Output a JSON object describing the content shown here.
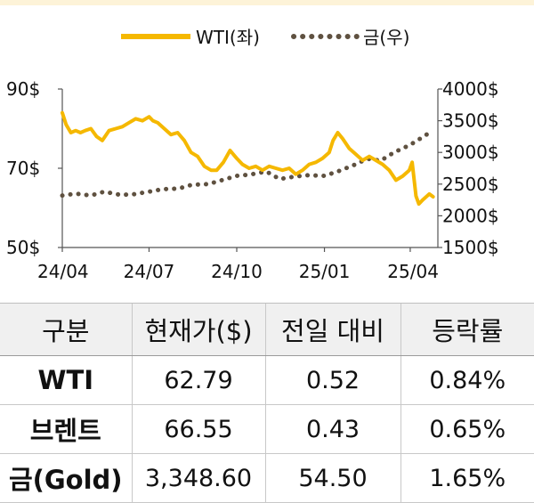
{
  "chart_data": {
    "type": "line",
    "legend_position": "top",
    "series": [
      {
        "name": "WTI(좌)",
        "axis": "left",
        "color": "#f5b800",
        "style": "solid",
        "x": [
          "2024-04-01",
          "2024-04-05",
          "2024-04-10",
          "2024-04-15",
          "2024-04-20",
          "2024-04-25",
          "2024-05-01",
          "2024-05-07",
          "2024-05-13",
          "2024-05-20",
          "2024-05-27",
          "2024-06-03",
          "2024-06-10",
          "2024-06-17",
          "2024-06-24",
          "2024-07-01",
          "2024-07-05",
          "2024-07-10",
          "2024-07-17",
          "2024-07-24",
          "2024-07-31",
          "2024-08-07",
          "2024-08-14",
          "2024-08-21",
          "2024-08-28",
          "2024-09-04",
          "2024-09-10",
          "2024-09-17",
          "2024-09-24",
          "2024-10-01",
          "2024-10-07",
          "2024-10-14",
          "2024-10-21",
          "2024-10-28",
          "2024-11-04",
          "2024-11-11",
          "2024-11-18",
          "2024-11-25",
          "2024-12-02",
          "2024-12-09",
          "2024-12-16",
          "2024-12-23",
          "2024-12-30",
          "2025-01-06",
          "2025-01-10",
          "2025-01-15",
          "2025-01-20",
          "2025-01-27",
          "2025-02-03",
          "2025-02-10",
          "2025-02-17",
          "2025-02-24",
          "2025-03-03",
          "2025-03-10",
          "2025-03-17",
          "2025-03-24",
          "2025-03-31",
          "2025-04-03",
          "2025-04-07",
          "2025-04-10",
          "2025-04-14",
          "2025-04-21",
          "2025-04-25"
        ],
        "values": [
          84,
          81,
          79,
          79.5,
          79,
          79.5,
          80,
          78,
          77,
          79.5,
          80,
          80.5,
          81.5,
          82.5,
          82,
          83,
          82,
          81.5,
          80,
          78.5,
          79,
          77,
          74,
          73,
          70.5,
          69.5,
          69.5,
          71.5,
          74.5,
          72.5,
          71,
          70,
          70.5,
          69.5,
          70.5,
          70,
          69.5,
          70,
          68.5,
          69.5,
          71,
          71.5,
          72.5,
          74,
          77,
          79,
          77.5,
          75,
          73.5,
          72,
          73,
          72,
          71,
          69.5,
          67,
          68,
          69.5,
          71.5,
          63,
          61,
          62,
          63.5,
          62.8
        ]
      },
      {
        "name": "금(우)",
        "axis": "right",
        "color": "#5f5140",
        "style": "dotted",
        "x": [
          "2024-04-01",
          "2024-04-15",
          "2024-05-01",
          "2024-05-15",
          "2024-06-01",
          "2024-06-15",
          "2024-07-01",
          "2024-07-15",
          "2024-08-01",
          "2024-08-15",
          "2024-09-01",
          "2024-09-15",
          "2024-10-01",
          "2024-10-15",
          "2024-11-01",
          "2024-11-15",
          "2024-12-01",
          "2024-12-15",
          "2025-01-01",
          "2025-01-15",
          "2025-02-01",
          "2025-02-15",
          "2025-03-01",
          "2025-03-15",
          "2025-04-01",
          "2025-04-15",
          "2025-04-25"
        ],
        "values": [
          2320,
          2350,
          2320,
          2380,
          2330,
          2340,
          2380,
          2420,
          2430,
          2490,
          2500,
          2560,
          2630,
          2650,
          2700,
          2580,
          2620,
          2640,
          2630,
          2700,
          2800,
          2900,
          2870,
          3000,
          3120,
          3250,
          3350
        ]
      }
    ],
    "x_ticks": [
      "24/04",
      "24/07",
      "24/10",
      "25/01",
      "25/04"
    ],
    "x_tick_dates": [
      "2024-04-01",
      "2024-07-01",
      "2024-10-01",
      "2025-01-01",
      "2025-04-01"
    ],
    "xlim": [
      "2024-04-01",
      "2025-04-30"
    ],
    "y_left": {
      "ticks": [
        "90$",
        "70$",
        "50$"
      ],
      "tick_values": [
        90,
        70,
        50
      ],
      "lim": [
        50,
        90
      ]
    },
    "y_right": {
      "ticks": [
        "4000$",
        "3500$",
        "3000$",
        "2500$",
        "2000$",
        "1500$"
      ],
      "tick_values": [
        4000,
        3500,
        3000,
        2500,
        2000,
        1500
      ],
      "lim": [
        1500,
        4000
      ]
    },
    "grid": false
  },
  "table": {
    "headers": [
      "구분",
      "현재가($)",
      "전일 대비",
      "등락률"
    ],
    "rows": [
      [
        "WTI",
        "62.79",
        "0.52",
        "0.84%"
      ],
      [
        "브렌트",
        "66.55",
        "0.43",
        "0.65%"
      ],
      [
        "금(Gold)",
        "3,348.60",
        "54.50",
        "1.65%"
      ]
    ]
  }
}
